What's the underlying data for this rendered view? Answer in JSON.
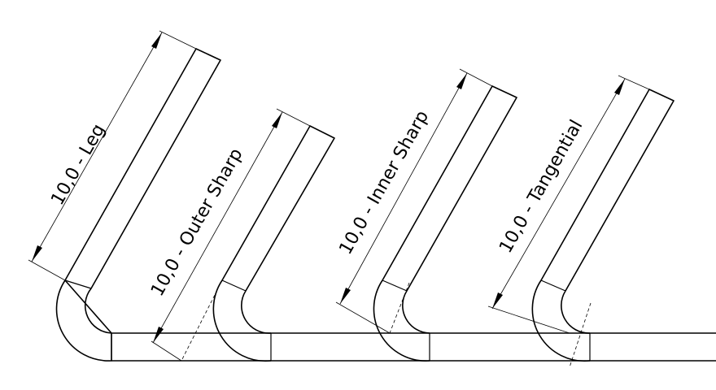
{
  "dimensions": [
    {
      "id": "leg",
      "label": "10,0 - Leg"
    },
    {
      "id": "outer-sharp",
      "label": "10,0 - Outer Sharp"
    },
    {
      "id": "inner-sharp",
      "label": "10,0 - Inner Sharp"
    },
    {
      "id": "tangential",
      "label": "10,0 - Tangential"
    }
  ]
}
